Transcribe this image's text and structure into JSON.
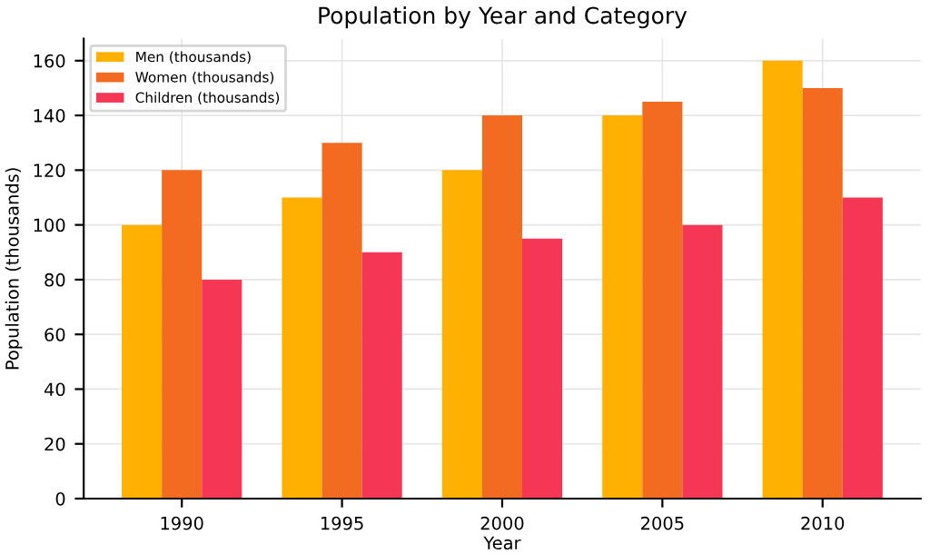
{
  "chart_data": {
    "type": "bar",
    "title": "Population by Year and Category",
    "xlabel": "Year",
    "ylabel": "Population (thousands)",
    "categories": [
      "1990",
      "1995",
      "2000",
      "2005",
      "2010"
    ],
    "series": [
      {
        "name": "Men (thousands)",
        "color": "#ffb000",
        "values": [
          100,
          110,
          120,
          140,
          160
        ]
      },
      {
        "name": "Women (thousands)",
        "color": "#f26b21",
        "values": [
          120,
          130,
          140,
          145,
          150
        ]
      },
      {
        "name": "Children (thousands)",
        "color": "#f53654",
        "values": [
          80,
          90,
          95,
          100,
          110
        ]
      }
    ],
    "ylim": [
      0,
      168
    ],
    "yticks": [
      0,
      20,
      40,
      60,
      80,
      100,
      120,
      140,
      160
    ],
    "grid": true,
    "legend": "top left"
  }
}
